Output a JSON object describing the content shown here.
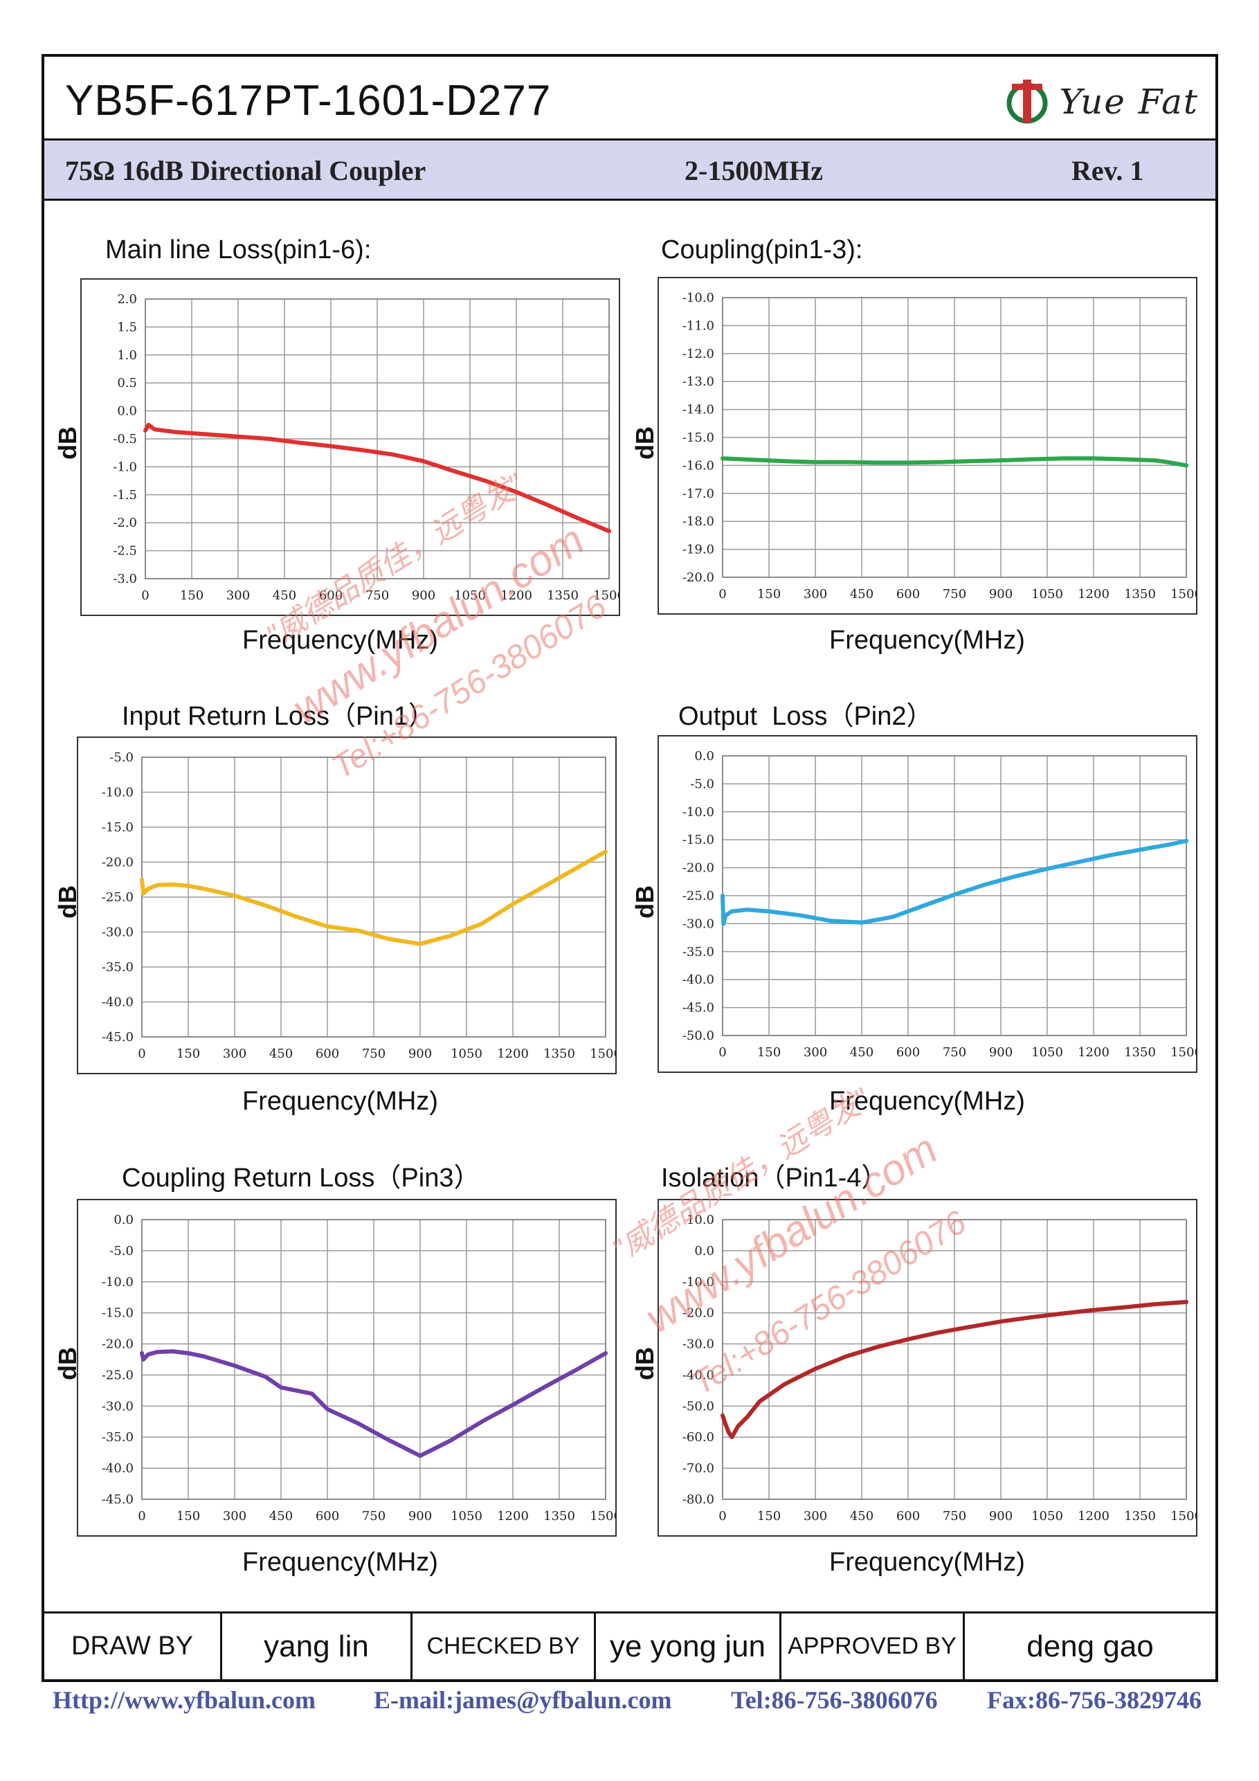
{
  "header": {
    "part_number": "YB5F-617PT-1601-D277",
    "logo_text": "Yue Fat",
    "spec_impedance_coupling": "75Ω  16dB  Directional Coupler",
    "spec_frequency": "2-1500MHz",
    "spec_revision": "Rev. 1"
  },
  "chart_data": [
    {
      "type": "line",
      "title": "Main line Loss(pin1-6):",
      "xlabel": "Frequency(MHz)",
      "ylabel": "dB",
      "xlim": [
        0,
        1500
      ],
      "ylim": [
        -3.0,
        2.0
      ],
      "xticks": [
        "0",
        "150",
        "300",
        "450",
        "600",
        "750",
        "900",
        "1050",
        "1200",
        "1350",
        "1500"
      ],
      "yticks": [
        "2.0",
        "1.5",
        "1.0",
        "0.5",
        "0.0",
        "-0.5",
        "-1.0",
        "-1.5",
        "-2.0",
        "-2.5",
        "-3.0"
      ],
      "grid": true,
      "color": "#e03030",
      "x": [
        0,
        10,
        30,
        100,
        200,
        300,
        400,
        500,
        600,
        700,
        800,
        900,
        1000,
        1100,
        1200,
        1300,
        1400,
        1500
      ],
      "y": [
        -0.35,
        -0.25,
        -0.33,
        -0.38,
        -0.42,
        -0.46,
        -0.5,
        -0.57,
        -0.63,
        -0.7,
        -0.78,
        -0.9,
        -1.08,
        -1.25,
        -1.45,
        -1.68,
        -1.92,
        -2.15
      ]
    },
    {
      "type": "line",
      "title": "Coupling(pin1-3):",
      "xlabel": "Frequency(MHz)",
      "ylabel": "dB",
      "xlim": [
        0,
        1500
      ],
      "ylim": [
        -20.0,
        -10.0
      ],
      "xticks": [
        "0",
        "150",
        "300",
        "450",
        "600",
        "750",
        "900",
        "1050",
        "1200",
        "1350",
        "1500"
      ],
      "yticks": [
        "-10.0",
        "-11.0",
        "-12.0",
        "-13.0",
        "-14.0",
        "-15.0",
        "-16.0",
        "-17.0",
        "-18.0",
        "-19.0",
        "-20.0"
      ],
      "grid": true,
      "color": "#2aa84a",
      "x": [
        0,
        100,
        200,
        300,
        400,
        500,
        600,
        700,
        800,
        900,
        1000,
        1100,
        1200,
        1300,
        1400,
        1450,
        1500
      ],
      "y": [
        -15.75,
        -15.8,
        -15.85,
        -15.88,
        -15.88,
        -15.9,
        -15.9,
        -15.88,
        -15.85,
        -15.82,
        -15.78,
        -15.75,
        -15.75,
        -15.78,
        -15.82,
        -15.9,
        -16.0
      ]
    },
    {
      "type": "line",
      "title": "Input Return Loss（Pin1）",
      "xlabel": "Frequency(MHz)",
      "ylabel": "dB",
      "xlim": [
        0,
        1500
      ],
      "ylim": [
        -45.0,
        -5.0
      ],
      "xticks": [
        "0",
        "150",
        "300",
        "450",
        "600",
        "750",
        "900",
        "1050",
        "1200",
        "1350",
        "1500"
      ],
      "yticks": [
        "-5.0",
        "-10.0",
        "-15.0",
        "-20.0",
        "-25.0",
        "-30.0",
        "-35.0",
        "-40.0",
        "-45.0"
      ],
      "grid": true,
      "color": "#f0b820",
      "x": [
        0,
        5,
        20,
        50,
        100,
        150,
        200,
        300,
        400,
        500,
        600,
        700,
        800,
        900,
        1000,
        1100,
        1200,
        1300,
        1400,
        1500
      ],
      "y": [
        -22.5,
        -24.5,
        -23.8,
        -23.3,
        -23.2,
        -23.4,
        -23.8,
        -24.8,
        -26.2,
        -27.8,
        -29.2,
        -29.8,
        -31.0,
        -31.7,
        -30.5,
        -28.8,
        -26.0,
        -23.5,
        -21.0,
        -18.5
      ]
    },
    {
      "type": "line",
      "title": "Output  Loss（Pin2）",
      "xlabel": "Frequency(MHz)",
      "ylabel": "dB",
      "xlim": [
        0,
        1500
      ],
      "ylim": [
        -50.0,
        0.0
      ],
      "xticks": [
        "0",
        "150",
        "300",
        "450",
        "600",
        "750",
        "900",
        "1050",
        "1200",
        "1350",
        "1500"
      ],
      "yticks": [
        "0.0",
        "-5.0",
        "-10.0",
        "-15.0",
        "-20.0",
        "-25.0",
        "-30.0",
        "-35.0",
        "-40.0",
        "-45.0",
        "-50.0"
      ],
      "grid": true,
      "color": "#30a8dd",
      "x": [
        0,
        3,
        10,
        30,
        80,
        150,
        250,
        350,
        450,
        550,
        650,
        750,
        850,
        950,
        1050,
        1150,
        1250,
        1350,
        1450,
        1500
      ],
      "y": [
        -25.0,
        -30.0,
        -28.5,
        -27.8,
        -27.5,
        -27.8,
        -28.5,
        -29.5,
        -29.8,
        -28.8,
        -26.8,
        -24.8,
        -23.0,
        -21.5,
        -20.2,
        -19.0,
        -17.8,
        -16.8,
        -15.8,
        -15.2
      ]
    },
    {
      "type": "line",
      "title": "Coupling Return Loss（Pin3）",
      "xlabel": "Frequency(MHz)",
      "ylabel": "dB",
      "xlim": [
        0,
        1500
      ],
      "ylim": [
        -45.0,
        0.0
      ],
      "xticks": [
        "0",
        "150",
        "300",
        "450",
        "600",
        "750",
        "900",
        "1050",
        "1200",
        "1350",
        "1500"
      ],
      "yticks": [
        "0.0",
        "-5.0",
        "-10.0",
        "-15.0",
        "-20.0",
        "-25.0",
        "-30.0",
        "-35.0",
        "-40.0",
        "-45.0"
      ],
      "grid": true,
      "color": "#7040a8",
      "x": [
        0,
        5,
        20,
        50,
        100,
        150,
        200,
        300,
        400,
        450,
        550,
        600,
        700,
        800,
        900,
        1000,
        1100,
        1200,
        1300,
        1400,
        1500
      ],
      "y": [
        -21.5,
        -22.5,
        -21.7,
        -21.3,
        -21.2,
        -21.5,
        -22.0,
        -23.5,
        -25.3,
        -27.0,
        -28.0,
        -30.5,
        -32.8,
        -35.5,
        -38.0,
        -35.5,
        -32.5,
        -29.8,
        -27.0,
        -24.3,
        -21.5
      ]
    },
    {
      "type": "line",
      "title": "Isolation（Pin1-4）",
      "xlabel": "Frequency(MHz)",
      "ylabel": "dB",
      "xlim": [
        0,
        1500
      ],
      "ylim": [
        -80.0,
        10.0
      ],
      "xticks": [
        "0",
        "150",
        "300",
        "450",
        "600",
        "750",
        "900",
        "1050",
        "1200",
        "1350",
        "1500"
      ],
      "yticks": [
        "10.0",
        "0.0",
        "-10.0",
        "-20.0",
        "-30.0",
        "-40.0",
        "-50.0",
        "-60.0",
        "-70.0",
        "-80.0"
      ],
      "grid": true,
      "color": "#b02828",
      "x": [
        0,
        10,
        20,
        30,
        50,
        80,
        120,
        200,
        300,
        400,
        500,
        600,
        700,
        800,
        900,
        1000,
        1100,
        1200,
        1300,
        1400,
        1500
      ],
      "y": [
        -53.0,
        -56.0,
        -58.5,
        -60.0,
        -56.5,
        -53.5,
        -48.5,
        -43.0,
        -38.0,
        -34.0,
        -31.0,
        -28.5,
        -26.3,
        -24.5,
        -22.8,
        -21.4,
        -20.2,
        -19.1,
        -18.2,
        -17.2,
        -16.5
      ]
    }
  ],
  "signature": {
    "drawn_by_label": "DRAW BY",
    "drawn_by_value": "yang lin",
    "checked_by_label": "CHECKED BY",
    "checked_by_value": "ye yong jun",
    "approved_by_label": "APPROVED BY",
    "approved_by_value": "deng  gao"
  },
  "footer": {
    "http": "Http://www.yfbalun.com",
    "email": "E-mail:james@yfbalun.com",
    "tel": "Tel:86-756-3806076",
    "fax": "Fax:86-756-3829746"
  },
  "watermark": {
    "slogan": "\"威德品质佳，远粤发\"",
    "site": "www.yfbalun.com",
    "phone": "Tel:+86-756-3806076"
  }
}
